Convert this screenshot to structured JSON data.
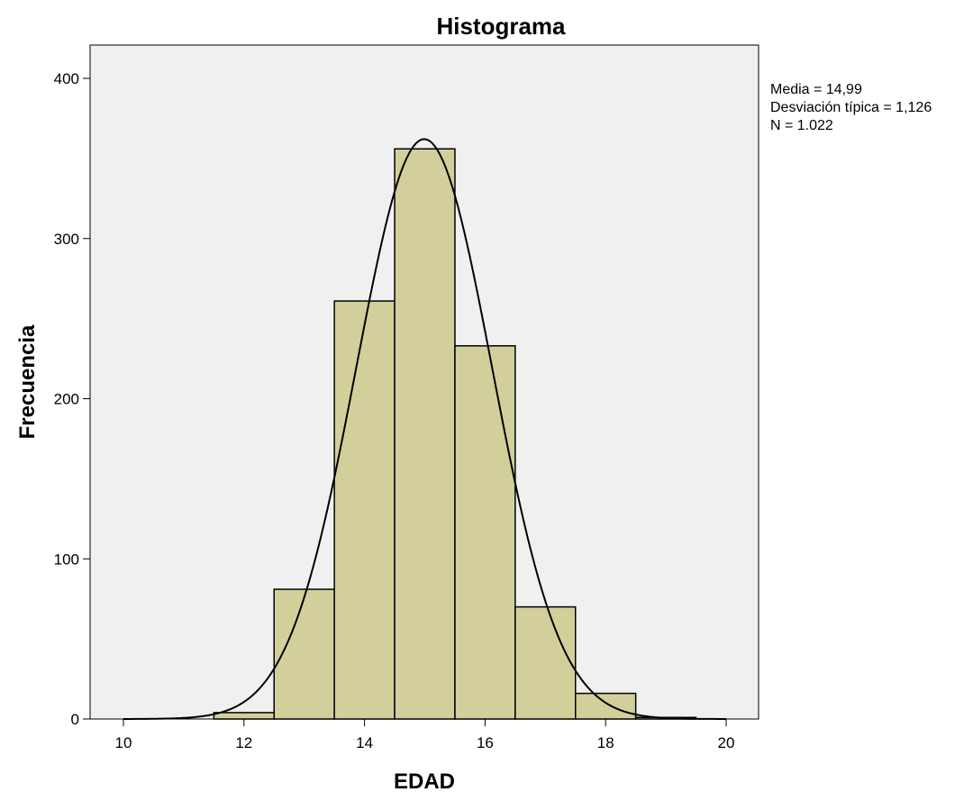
{
  "chart_data": {
    "type": "bar",
    "title": "Histograma",
    "xlabel": "EDAD",
    "ylabel": "Frecuencia",
    "xlim": [
      9.5,
      20.5
    ],
    "ylim": [
      0,
      420
    ],
    "x_ticks": [
      "10",
      "12",
      "14",
      "16",
      "18",
      "20"
    ],
    "y_ticks": [
      "0",
      "100",
      "200",
      "300",
      "400"
    ],
    "bins": [
      {
        "x0": 11.5,
        "x1": 12.5,
        "value": 4
      },
      {
        "x0": 12.5,
        "x1": 13.5,
        "value": 81
      },
      {
        "x0": 13.5,
        "x1": 14.5,
        "value": 261
      },
      {
        "x0": 14.5,
        "x1": 15.5,
        "value": 356
      },
      {
        "x0": 15.5,
        "x1": 16.5,
        "value": 233
      },
      {
        "x0": 16.5,
        "x1": 17.5,
        "value": 70
      },
      {
        "x0": 17.5,
        "x1": 18.5,
        "value": 16
      },
      {
        "x0": 18.5,
        "x1": 19.5,
        "value": 1
      }
    ],
    "normal_curve": {
      "mean": 14.99,
      "sd": 1.126,
      "n": 1022,
      "bin_width": 1
    },
    "stats": [
      "Media = 14,99",
      "Desviación típica = 1,126",
      "N = 1.022"
    ],
    "grid": false,
    "colors": {
      "bar_fill": "#d3cf9b",
      "bar_stroke": "#000000",
      "plot_bg": "#f0f0f0",
      "curve": "#000000"
    }
  }
}
